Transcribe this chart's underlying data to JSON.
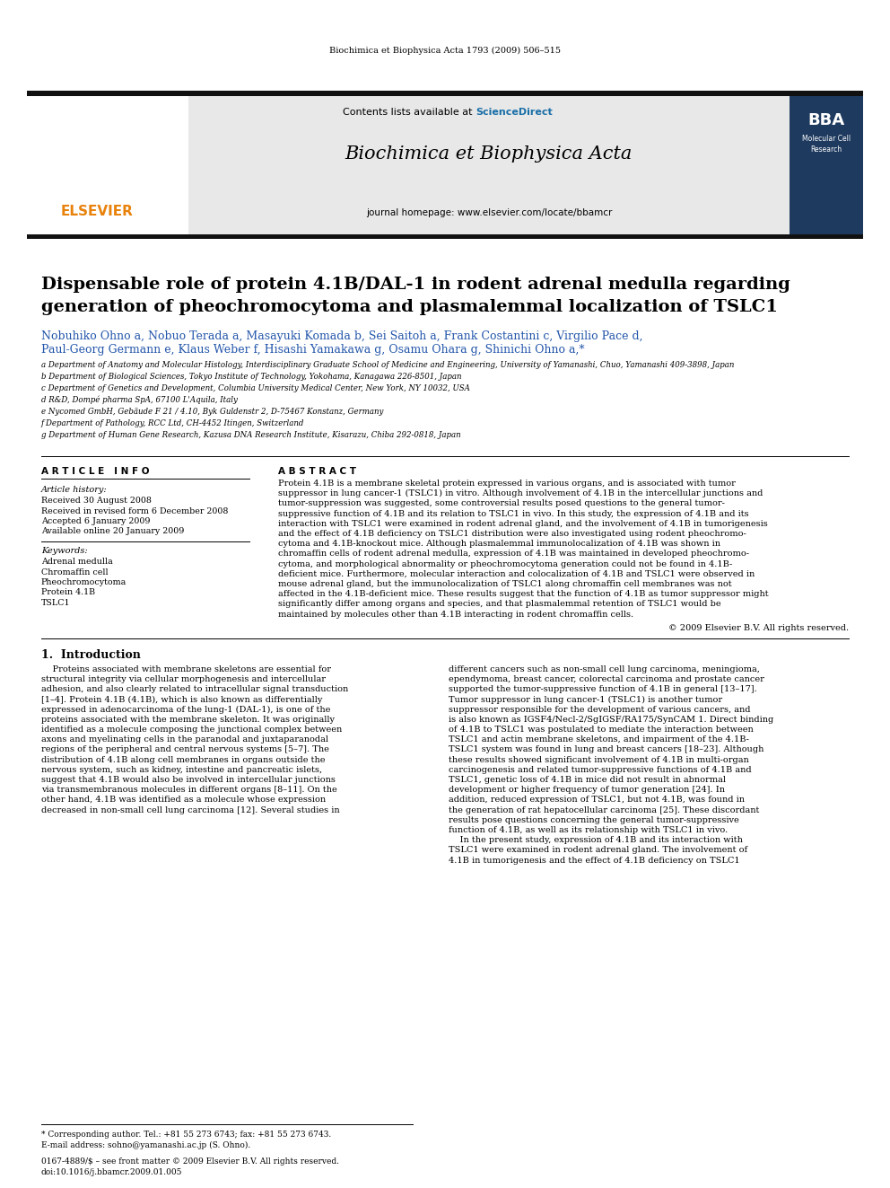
{
  "journal_header": "Biochimica et Biophysica Acta 1793 (2009) 506–515",
  "journal_name": "Biochimica et Biophysica Acta",
  "contents_line": "Contents lists available at ScienceDirect",
  "homepage_line": "journal homepage: www.elsevier.com/locate/bbamcr",
  "title_line1": "Dispensable role of protein 4.1B/DAL-1 in rodent adrenal medulla regarding",
  "title_line2": "generation of pheochromocytoma and plasmalemmal localization of TSLC1",
  "author_line1": "Nobuhiko Ohno a, Nobuo Terada a, Masayuki Komada b, Sei Saitoh a, Frank Costantini c, Virgilio Pace d,",
  "author_line2": "Paul-Georg Germann e, Klaus Weber f, Hisashi Yamakawa g, Osamu Ohara g, Shinichi Ohno a,*",
  "affiliations": [
    "a Department of Anatomy and Molecular Histology, Interdisciplinary Graduate School of Medicine and Engineering, University of Yamanashi, Chuo, Yamanashi 409-3898, Japan",
    "b Department of Biological Sciences, Tokyo Institute of Technology, Yokohama, Kanagawa 226-8501, Japan",
    "c Department of Genetics and Development, Columbia University Medical Center, New York, NY 10032, USA",
    "d R&D, Dompé pharma SpA, 67100 L'Aquila, Italy",
    "e Nycomed GmbH, Gebäude F 21 / 4.10, Byk Guldenstr 2, D-75467 Konstanz, Germany",
    "f Department of Pathology, RCC Ltd, CH-4452 Itingen, Switzerland",
    "g Department of Human Gene Research, Kazusa DNA Research Institute, Kisarazu, Chiba 292-0818, Japan"
  ],
  "article_info_header": "A R T I C L E   I N F O",
  "article_history_header": "Article history:",
  "article_history": [
    "Received 30 August 2008",
    "Received in revised form 6 December 2008",
    "Accepted 6 January 2009",
    "Available online 20 January 2009"
  ],
  "keywords_header": "Keywords:",
  "keywords": [
    "Adrenal medulla",
    "Chromaffin cell",
    "Pheochromocytoma",
    "Protein 4.1B",
    "TSLC1"
  ],
  "abstract_header": "A B S T R A C T",
  "abstract_lines": [
    "Protein 4.1B is a membrane skeletal protein expressed in various organs, and is associated with tumor",
    "suppressor in lung cancer-1 (TSLC1) in vitro. Although involvement of 4.1B in the intercellular junctions and",
    "tumor-suppression was suggested, some controversial results posed questions to the general tumor-",
    "suppressive function of 4.1B and its relation to TSLC1 in vivo. In this study, the expression of 4.1B and its",
    "interaction with TSLC1 were examined in rodent adrenal gland, and the involvement of 4.1B in tumorigenesis",
    "and the effect of 4.1B deficiency on TSLC1 distribution were also investigated using rodent pheochromo-",
    "cytoma and 4.1B-knockout mice. Although plasmalemmal immunolocalization of 4.1B was shown in",
    "chromaffin cells of rodent adrenal medulla, expression of 4.1B was maintained in developed pheochromo-",
    "cytoma, and morphological abnormality or pheochromocytoma generation could not be found in 4.1B-",
    "deficient mice. Furthermore, molecular interaction and colocalization of 4.1B and TSLC1 were observed in",
    "mouse adrenal gland, but the immunolocalization of TSLC1 along chromaffin cell membranes was not",
    "affected in the 4.1B-deficient mice. These results suggest that the function of 4.1B as tumor suppressor might",
    "significantly differ among organs and species, and that plasmalemmal retention of TSLC1 would be",
    "maintained by molecules other than 4.1B interacting in rodent chromaffin cells."
  ],
  "copyright_line": "© 2009 Elsevier B.V. All rights reserved.",
  "intro_header": "1.  Introduction",
  "intro_col1_lines": [
    "    Proteins associated with membrane skeletons are essential for",
    "structural integrity via cellular morphogenesis and intercellular",
    "adhesion, and also clearly related to intracellular signal transduction",
    "[1–4]. Protein 4.1B (4.1B), which is also known as differentially",
    "expressed in adenocarcinoma of the lung-1 (DAL-1), is one of the",
    "proteins associated with the membrane skeleton. It was originally",
    "identified as a molecule composing the junctional complex between",
    "axons and myelinating cells in the paranodal and juxtaparanodal",
    "regions of the peripheral and central nervous systems [5–7]. The",
    "distribution of 4.1B along cell membranes in organs outside the",
    "nervous system, such as kidney, intestine and pancreatic islets,",
    "suggest that 4.1B would also be involved in intercellular junctions",
    "via transmembranous molecules in different organs [8–11]. On the",
    "other hand, 4.1B was identified as a molecule whose expression",
    "decreased in non-small cell lung carcinoma [12]. Several studies in"
  ],
  "intro_col2_lines": [
    "different cancers such as non-small cell lung carcinoma, meningioma,",
    "ependymoma, breast cancer, colorectal carcinoma and prostate cancer",
    "supported the tumor-suppressive function of 4.1B in general [13–17].",
    "Tumor suppressor in lung cancer-1 (TSLC1) is another tumor",
    "suppressor responsible for the development of various cancers, and",
    "is also known as IGSF4/Necl-2/SgIGSF/RA175/SynCAM 1. Direct binding",
    "of 4.1B to TSLC1 was postulated to mediate the interaction between",
    "TSLC1 and actin membrane skeletons, and impairment of the 4.1B-",
    "TSLC1 system was found in lung and breast cancers [18–23]. Although",
    "these results showed significant involvement of 4.1B in multi-organ",
    "carcinogenesis and related tumor-suppressive functions of 4.1B and",
    "TSLC1, genetic loss of 4.1B in mice did not result in abnormal",
    "development or higher frequency of tumor generation [24]. In",
    "addition, reduced expression of TSLC1, but not 4.1B, was found in",
    "the generation of rat hepatocellular carcinoma [25]. These discordant",
    "results pose questions concerning the general tumor-suppressive",
    "function of 4.1B, as well as its relationship with TSLC1 in vivo.",
    "    In the present study, expression of 4.1B and its interaction with",
    "TSLC1 were examined in rodent adrenal gland. The involvement of",
    "4.1B in tumorigenesis and the effect of 4.1B deficiency on TSLC1"
  ],
  "footnote1": "* Corresponding author. Tel.: +81 55 273 6743; fax: +81 55 273 6743.",
  "footnote2": "E-mail address: sohno@yamanashi.ac.jp (S. Ohno).",
  "footnote3": "0167-4889/$ – see front matter © 2009 Elsevier B.V. All rights reserved.",
  "footnote4": "doi:10.1016/j.bbamcr.2009.01.005",
  "bg_color": "#ffffff",
  "dark_bar_color": "#111111",
  "elsevier_orange": "#e8820c",
  "sciencedirect_blue": "#1a6fa8",
  "bba_dark_blue": "#1e3a5f",
  "author_color": "#2255aa"
}
